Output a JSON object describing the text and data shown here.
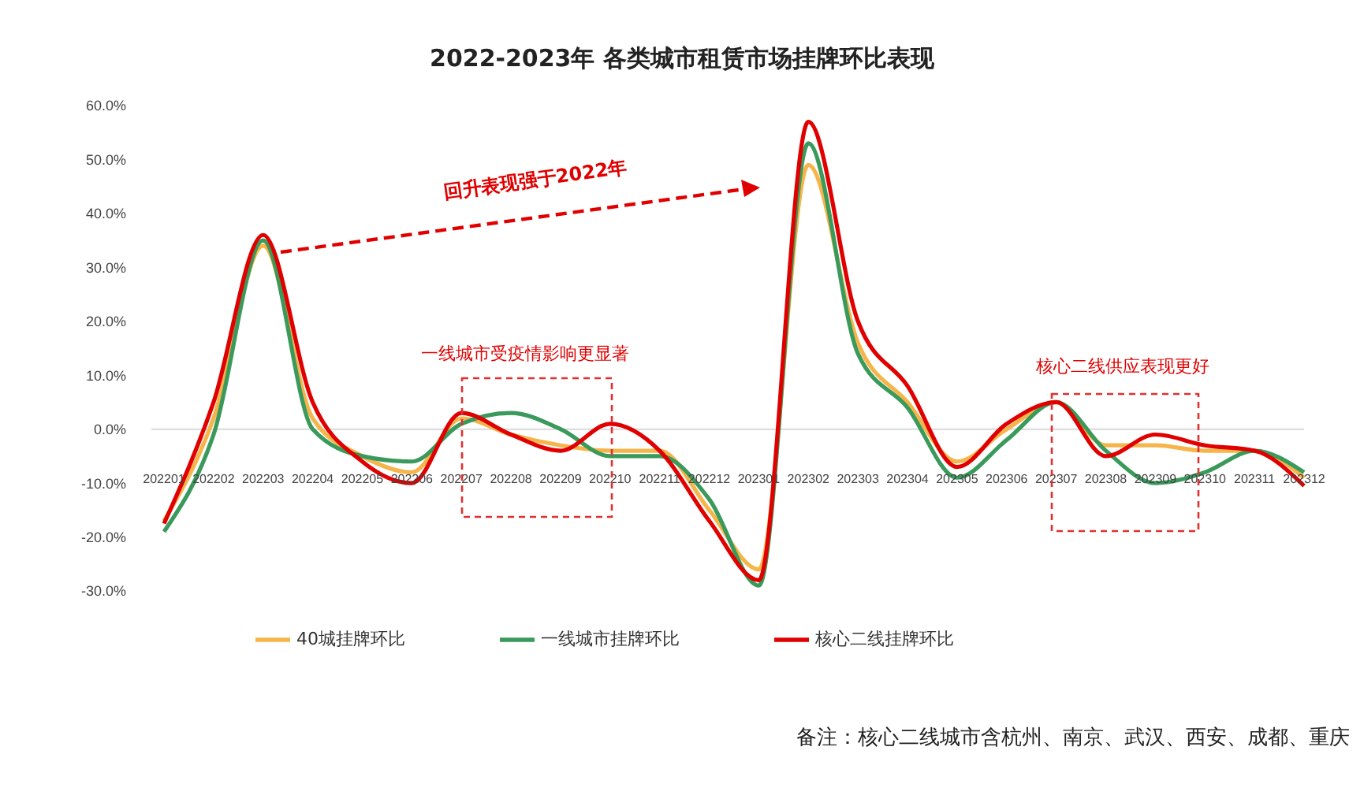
{
  "chart_data": {
    "type": "line",
    "title": "2022-2023年 各类城市租赁市场挂牌环比表现",
    "categories": [
      "202201",
      "202202",
      "202203",
      "202204",
      "202205",
      "202206",
      "202207",
      "202208",
      "202209",
      "202210",
      "202211",
      "202212",
      "202301",
      "202302",
      "202303",
      "202304",
      "202305",
      "202306",
      "202307",
      "202308",
      "202309",
      "202310",
      "202311",
      "202312"
    ],
    "series": [
      {
        "name": "40城挂牌环比",
        "color": "#f5b54a",
        "values": [
          -17,
          2,
          34,
          2,
          -5,
          -8,
          2,
          -1,
          -3,
          -4,
          -4,
          -15,
          -26,
          49,
          16,
          5,
          -6,
          0,
          5,
          -3,
          -3,
          -4,
          -4,
          -9
        ]
      },
      {
        "name": "一线城市挂牌环比",
        "color": "#3a9a5b",
        "values": [
          -19,
          -1,
          35,
          0,
          -5,
          -6,
          1,
          3,
          0,
          -5,
          -5,
          -13,
          -29,
          53,
          14,
          4,
          -9,
          -2,
          5,
          -4,
          -10,
          -8,
          -4,
          -8
        ]
      },
      {
        "name": "核心二线挂牌环比",
        "color": "#e00000",
        "values": [
          -17.5,
          5,
          36,
          5,
          -6,
          -10,
          3,
          -1,
          -4,
          1,
          -4,
          -17,
          -28,
          57,
          20,
          8,
          -7,
          1,
          5,
          -5,
          -1,
          -3,
          -4,
          -10.5
        ]
      }
    ],
    "ylim": [
      -30,
      60
    ],
    "yticks": [
      {
        "value": -30,
        "label": "-30.0%"
      },
      {
        "value": -20,
        "label": "-20.0%"
      },
      {
        "value": -10,
        "label": "-10.0%"
      },
      {
        "value": 0,
        "label": "0.0%"
      },
      {
        "value": 10,
        "label": "10.0%"
      },
      {
        "value": 20,
        "label": "20.0%"
      },
      {
        "value": 30,
        "label": "30.0%"
      },
      {
        "value": 40,
        "label": "40.0%"
      },
      {
        "value": 50,
        "label": "50.0%"
      },
      {
        "value": 60,
        "label": "60.0%"
      }
    ],
    "ref_lines": [
      {
        "axis": "y",
        "value": 0,
        "color": "#d9d9d9"
      }
    ],
    "grid": false,
    "legend": "bottom",
    "marker": "none",
    "line_style": "solid",
    "annotations": [
      "回升表现强于2022年",
      "一线城市受疫情影响更显著",
      "核心二线供应表现更好",
      "备注：核心二线城市含杭州、南京、武汉、西安、成都、重庆"
    ]
  }
}
